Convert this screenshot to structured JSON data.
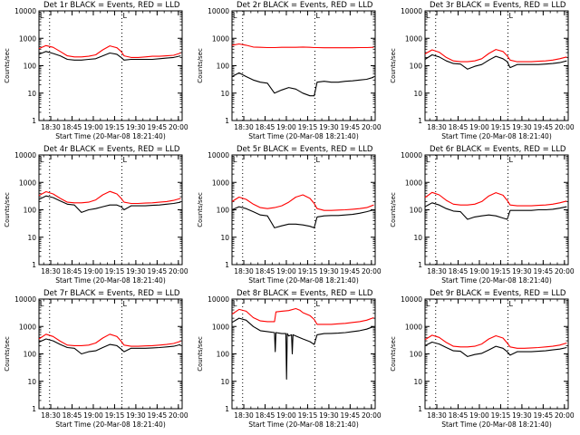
{
  "figure": {
    "x_tick_labels": [
      "18:30",
      "18:45",
      "19:00",
      "19:15",
      "19:30",
      "19:45",
      "20:00"
    ],
    "y_tick_labels": [
      "1",
      "10",
      "100",
      "1000",
      "10000"
    ],
    "xlabel": "Start Time (20-Mar-08 18:21:40)",
    "ylabel": "Counts/sec",
    "attenuator_marker": "L",
    "colors": {
      "events": "#000000",
      "lld": "#ff0000"
    }
  },
  "chart_data": [
    {
      "type": "line",
      "title": "Det 1r BLACK = Events, RED = LLD",
      "xlabel": "Start Time (20-Mar-08 18:21:40)",
      "ylabel": "Counts/sec",
      "x_unit": "minutes after 18:21:40",
      "xlim": [
        0,
        101
      ],
      "ylim": [
        1,
        10000
      ],
      "y_scale": "log",
      "vlines": [
        7.5,
        58.5
      ],
      "series": [
        {
          "name": "Events",
          "color": "#000000",
          "x": [
            0,
            5,
            10,
            15,
            20,
            25,
            30,
            35,
            40,
            45,
            50,
            55,
            58,
            60,
            65,
            70,
            75,
            80,
            85,
            90,
            95,
            100
          ],
          "y": [
            260,
            330,
            280,
            230,
            170,
            160,
            160,
            170,
            180,
            230,
            290,
            260,
            200,
            160,
            170,
            170,
            170,
            170,
            180,
            190,
            200,
            230
          ]
        },
        {
          "name": "LLD",
          "color": "#ff0000",
          "x": [
            0,
            5,
            10,
            15,
            20,
            25,
            30,
            35,
            40,
            45,
            50,
            55,
            58,
            60,
            65,
            70,
            75,
            80,
            85,
            90,
            95,
            100
          ],
          "y": [
            420,
            540,
            470,
            330,
            230,
            210,
            210,
            220,
            250,
            380,
            530,
            450,
            330,
            230,
            200,
            200,
            210,
            220,
            220,
            230,
            240,
            290
          ]
        }
      ]
    },
    {
      "type": "line",
      "title": "Det 2r BLACK = Events, RED = LLD",
      "xlabel": "Start Time (20-Mar-08 18:21:40)",
      "ylabel": "Counts/sec",
      "x_unit": "minutes after 18:21:40",
      "xlim": [
        0,
        101
      ],
      "ylim": [
        1,
        10000
      ],
      "y_scale": "log",
      "vlines": [
        7.5,
        58.5
      ],
      "series": [
        {
          "name": "Events",
          "color": "#000000",
          "x": [
            0,
            5,
            10,
            15,
            20,
            25,
            30,
            35,
            40,
            45,
            50,
            55,
            58,
            60,
            65,
            70,
            75,
            80,
            85,
            90,
            95,
            100
          ],
          "y": [
            40,
            55,
            40,
            30,
            25,
            23,
            10,
            13,
            16,
            14,
            10,
            8,
            8,
            25,
            27,
            25,
            25,
            27,
            28,
            30,
            32,
            38
          ]
        },
        {
          "name": "LLD",
          "color": "#ff0000",
          "x": [
            0,
            5,
            10,
            15,
            20,
            25,
            30,
            35,
            40,
            45,
            50,
            55,
            58,
            60,
            65,
            70,
            75,
            80,
            85,
            90,
            95,
            100
          ],
          "y": [
            560,
            620,
            560,
            480,
            470,
            460,
            460,
            470,
            470,
            470,
            480,
            470,
            460,
            460,
            450,
            450,
            450,
            450,
            450,
            460,
            460,
            470
          ]
        }
      ]
    },
    {
      "type": "line",
      "title": "Det 3r BLACK = Events, RED = LLD",
      "xlabel": "Start Time (20-Mar-08 18:21:40)",
      "ylabel": "Counts/sec",
      "x_unit": "minutes after 18:21:40",
      "xlim": [
        0,
        101
      ],
      "ylim": [
        1,
        10000
      ],
      "y_scale": "log",
      "vlines": [
        7.5,
        58.5
      ],
      "series": [
        {
          "name": "Events",
          "color": "#000000",
          "x": [
            0,
            5,
            10,
            15,
            20,
            25,
            30,
            35,
            40,
            45,
            50,
            55,
            58,
            60,
            65,
            70,
            75,
            80,
            85,
            90,
            95,
            100
          ],
          "y": [
            170,
            250,
            210,
            150,
            120,
            115,
            75,
            95,
            110,
            160,
            220,
            180,
            140,
            85,
            110,
            110,
            110,
            110,
            115,
            120,
            130,
            150
          ]
        },
        {
          "name": "LLD",
          "color": "#ff0000",
          "x": [
            0,
            5,
            10,
            15,
            20,
            25,
            30,
            35,
            40,
            45,
            50,
            55,
            58,
            60,
            65,
            70,
            75,
            80,
            85,
            90,
            95,
            100
          ],
          "y": [
            270,
            380,
            310,
            200,
            150,
            140,
            140,
            150,
            180,
            280,
            390,
            330,
            230,
            160,
            140,
            140,
            140,
            145,
            150,
            160,
            180,
            210
          ]
        }
      ]
    },
    {
      "type": "line",
      "title": "Det 4r BLACK = Events, RED = LLD",
      "xlabel": "Start Time (20-Mar-08 18:21:40)",
      "ylabel": "Counts/sec",
      "x_unit": "minutes after 18:21:40",
      "xlim": [
        0,
        101
      ],
      "ylim": [
        1,
        10000
      ],
      "y_scale": "log",
      "vlines": [
        7.5,
        58.5
      ],
      "series": [
        {
          "name": "Events",
          "color": "#000000",
          "x": [
            0,
            5,
            10,
            15,
            20,
            25,
            30,
            35,
            40,
            45,
            50,
            55,
            58,
            60,
            65,
            70,
            75,
            80,
            85,
            90,
            95,
            100
          ],
          "y": [
            240,
            320,
            280,
            210,
            160,
            150,
            80,
            100,
            110,
            130,
            150,
            150,
            130,
            100,
            140,
            140,
            140,
            145,
            150,
            160,
            170,
            190
          ]
        },
        {
          "name": "LLD",
          "color": "#ff0000",
          "x": [
            0,
            5,
            10,
            15,
            20,
            25,
            30,
            35,
            40,
            45,
            50,
            55,
            58,
            60,
            65,
            70,
            75,
            80,
            85,
            90,
            95,
            100
          ],
          "y": [
            330,
            460,
            380,
            260,
            190,
            180,
            180,
            190,
            230,
            350,
            470,
            380,
            260,
            190,
            170,
            170,
            175,
            180,
            190,
            200,
            220,
            260
          ]
        }
      ]
    },
    {
      "type": "line",
      "title": "Det 5r BLACK = Events, RED = LLD",
      "xlabel": "Start Time (20-Mar-08 18:21:40)",
      "ylabel": "Counts/sec",
      "x_unit": "minutes after 18:21:40",
      "xlim": [
        0,
        101
      ],
      "ylim": [
        1,
        10000
      ],
      "y_scale": "log",
      "vlines": [
        7.5,
        58.5
      ],
      "series": [
        {
          "name": "Events",
          "color": "#000000",
          "x": [
            0,
            5,
            10,
            15,
            20,
            25,
            30,
            35,
            40,
            45,
            50,
            55,
            58,
            60,
            65,
            70,
            75,
            80,
            85,
            90,
            95,
            100
          ],
          "y": [
            100,
            130,
            110,
            85,
            65,
            60,
            22,
            26,
            30,
            30,
            28,
            25,
            22,
            55,
            60,
            62,
            62,
            65,
            68,
            75,
            85,
            100
          ]
        },
        {
          "name": "LLD",
          "color": "#ff0000",
          "x": [
            0,
            5,
            10,
            15,
            20,
            25,
            30,
            35,
            40,
            45,
            50,
            55,
            58,
            60,
            65,
            70,
            75,
            80,
            85,
            90,
            95,
            100
          ],
          "y": [
            200,
            290,
            240,
            160,
            120,
            110,
            120,
            140,
            190,
            290,
            350,
            260,
            170,
            110,
            95,
            95,
            98,
            100,
            105,
            110,
            120,
            150
          ]
        }
      ]
    },
    {
      "type": "line",
      "title": "Det 6r BLACK = Events, RED = LLD",
      "xlabel": "Start Time (20-Mar-08 18:21:40)",
      "ylabel": "Counts/sec",
      "x_unit": "minutes after 18:21:40",
      "xlim": [
        0,
        101
      ],
      "ylim": [
        1,
        10000
      ],
      "y_scale": "log",
      "vlines": [
        7.5,
        58.5
      ],
      "series": [
        {
          "name": "Events",
          "color": "#000000",
          "x": [
            0,
            5,
            10,
            15,
            20,
            25,
            30,
            35,
            40,
            45,
            50,
            55,
            58,
            60,
            65,
            70,
            75,
            80,
            85,
            90,
            95,
            100
          ],
          "y": [
            130,
            180,
            150,
            110,
            90,
            85,
            45,
            55,
            60,
            65,
            60,
            50,
            45,
            95,
            95,
            95,
            95,
            100,
            100,
            105,
            115,
            130
          ]
        },
        {
          "name": "LLD",
          "color": "#ff0000",
          "x": [
            0,
            5,
            10,
            15,
            20,
            25,
            30,
            35,
            40,
            45,
            50,
            55,
            58,
            60,
            65,
            70,
            75,
            80,
            85,
            90,
            95,
            100
          ],
          "y": [
            280,
            430,
            350,
            220,
            160,
            150,
            150,
            160,
            200,
            320,
            420,
            340,
            220,
            150,
            140,
            140,
            140,
            145,
            150,
            160,
            180,
            210
          ]
        }
      ]
    },
    {
      "type": "line",
      "title": "Det 7r BLACK = Events, RED = LLD",
      "xlabel": "Start Time (20-Mar-08 18:21:40)",
      "ylabel": "Counts/sec",
      "x_unit": "minutes after 18:21:40",
      "xlim": [
        0,
        101
      ],
      "ylim": [
        1,
        10000
      ],
      "y_scale": "log",
      "vlines": [
        7.5,
        58.5
      ],
      "series": [
        {
          "name": "Events",
          "color": "#000000",
          "x": [
            0,
            5,
            10,
            15,
            20,
            25,
            30,
            35,
            40,
            45,
            50,
            55,
            58,
            60,
            65,
            70,
            75,
            80,
            85,
            90,
            95,
            100
          ],
          "y": [
            270,
            350,
            300,
            220,
            170,
            160,
            100,
            120,
            130,
            170,
            220,
            200,
            150,
            120,
            160,
            160,
            160,
            165,
            170,
            180,
            190,
            220
          ]
        },
        {
          "name": "LLD",
          "color": "#ff0000",
          "x": [
            0,
            5,
            10,
            15,
            20,
            25,
            30,
            35,
            40,
            45,
            50,
            55,
            58,
            60,
            65,
            70,
            75,
            80,
            85,
            90,
            95,
            100
          ],
          "y": [
            350,
            520,
            430,
            290,
            210,
            200,
            200,
            210,
            250,
            380,
            520,
            430,
            290,
            210,
            190,
            190,
            195,
            200,
            210,
            220,
            240,
            290
          ]
        }
      ]
    },
    {
      "type": "line",
      "title": "Det 8r BLACK = Events, RED = LLD",
      "xlabel": "Start Time (20-Mar-08 18:21:40)",
      "ylabel": "Counts/sec",
      "x_unit": "minutes after 18:21:40",
      "xlim": [
        0,
        101
      ],
      "ylim": [
        1,
        10000
      ],
      "y_scale": "log",
      "vlines": [
        7.5,
        58.5
      ],
      "series": [
        {
          "name": "Events",
          "color": "#000000",
          "x": [
            0,
            5,
            10,
            15,
            20,
            25,
            30,
            30.5,
            31,
            35,
            38,
            38.5,
            39,
            40,
            42,
            42.5,
            43,
            45,
            50,
            55,
            58,
            60,
            65,
            70,
            75,
            80,
            85,
            90,
            95,
            100
          ],
          "y": [
            1400,
            2000,
            1700,
            1000,
            700,
            650,
            600,
            120,
            600,
            550,
            550,
            12,
            550,
            450,
            500,
            100,
            500,
            450,
            350,
            280,
            220,
            500,
            550,
            560,
            570,
            600,
            650,
            700,
            800,
            1000
          ]
        },
        {
          "name": "LLD",
          "color": "#ff0000",
          "x": [
            0,
            5,
            10,
            15,
            20,
            25,
            30,
            31,
            35,
            40,
            45,
            48,
            50,
            55,
            58,
            60,
            65,
            70,
            75,
            80,
            85,
            90,
            95,
            100
          ],
          "y": [
            2800,
            4200,
            3600,
            2100,
            1600,
            1500,
            1500,
            3400,
            3600,
            3800,
            4500,
            3900,
            3200,
            2500,
            1800,
            1200,
            1200,
            1200,
            1250,
            1300,
            1400,
            1500,
            1700,
            2100
          ]
        }
      ]
    },
    {
      "type": "line",
      "title": "Det 9r BLACK = Events, RED = LLD",
      "xlabel": "Start Time (20-Mar-08 18:21:40)",
      "ylabel": "Counts/sec",
      "x_unit": "minutes after 18:21:40",
      "xlim": [
        0,
        101
      ],
      "ylim": [
        1,
        10000
      ],
      "y_scale": "log",
      "vlines": [
        7.5,
        58.5
      ],
      "series": [
        {
          "name": "Events",
          "color": "#000000",
          "x": [
            0,
            5,
            10,
            15,
            20,
            25,
            30,
            35,
            40,
            45,
            50,
            55,
            58,
            60,
            65,
            70,
            75,
            80,
            85,
            90,
            95,
            100
          ],
          "y": [
            200,
            270,
            230,
            170,
            130,
            125,
            80,
            95,
            105,
            140,
            190,
            160,
            120,
            90,
            120,
            120,
            120,
            125,
            130,
            140,
            150,
            170
          ]
        },
        {
          "name": "LLD",
          "color": "#ff0000",
          "x": [
            0,
            5,
            10,
            15,
            20,
            25,
            30,
            35,
            40,
            45,
            50,
            55,
            58,
            60,
            65,
            70,
            75,
            80,
            85,
            90,
            95,
            100
          ],
          "y": [
            330,
            480,
            400,
            260,
            190,
            180,
            180,
            190,
            230,
            350,
            460,
            380,
            250,
            180,
            160,
            160,
            165,
            170,
            180,
            190,
            210,
            250
          ]
        }
      ]
    }
  ]
}
